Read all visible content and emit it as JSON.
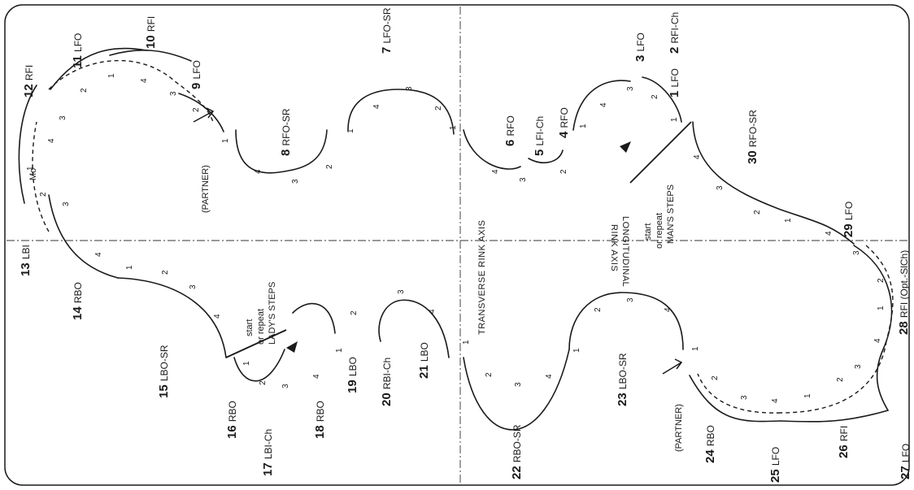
{
  "labels": {
    "s1": "1",
    "s1e": "LFO",
    "s2": "2",
    "s2e": "RFI-Ch",
    "s3": "3",
    "s3e": "LFO",
    "s4": "4",
    "s4e": "RFO",
    "s5": "5",
    "s5e": "LFI-Ch",
    "s6": "6",
    "s6e": "RFO",
    "s7": "7",
    "s7e": "LFO-SR",
    "s8": "8",
    "s8e": "RFO-SR",
    "s9": "9",
    "s9e": "LFO",
    "s10": "10",
    "s10e": "RFI",
    "s11": "11",
    "s11e": "LFO",
    "s12": "12",
    "s12e": "RFI",
    "s13": "13",
    "s13e": "LBI",
    "s14": "14",
    "s14e": "RBO",
    "s15": "15",
    "s15e": "LBO-SR",
    "s16": "16",
    "s16e": "RBO",
    "s17": "17",
    "s17e": "LBI-Ch",
    "s18": "18",
    "s18e": "RBO",
    "s19": "19",
    "s19e": "LBO",
    "s20": "20",
    "s20e": "RBI-Ch",
    "s21": "21",
    "s21e": "LBO",
    "s22": "22",
    "s22e": "RBO-SR",
    "s23": "23",
    "s23e": "LBO-SR",
    "s24": "24",
    "s24e": "RBO",
    "s25": "25",
    "s25e": "LFO",
    "s26": "26",
    "s26e": "RFI",
    "s27": "27",
    "s27e": "LFO",
    "s28": "28",
    "s28e": "RFI (Opt.-SlCh)",
    "s29": "29",
    "s29e": "LFO",
    "s30": "30",
    "s30e": "RFO-SR",
    "mo": "Mo",
    "partner": "(PARTNER)",
    "start": "start",
    "or_repeat": "or repeat",
    "mans_steps": "MAN'S STEPS",
    "ladys_steps": "LADY'S STEPS",
    "transverse": "TRANSVERSE RINK AXIS",
    "longitudinal_1": "LONGITUDINAL",
    "longitudinal_2": "RINK AXIS"
  },
  "beats": [
    "1",
    "2",
    "3",
    "4"
  ]
}
